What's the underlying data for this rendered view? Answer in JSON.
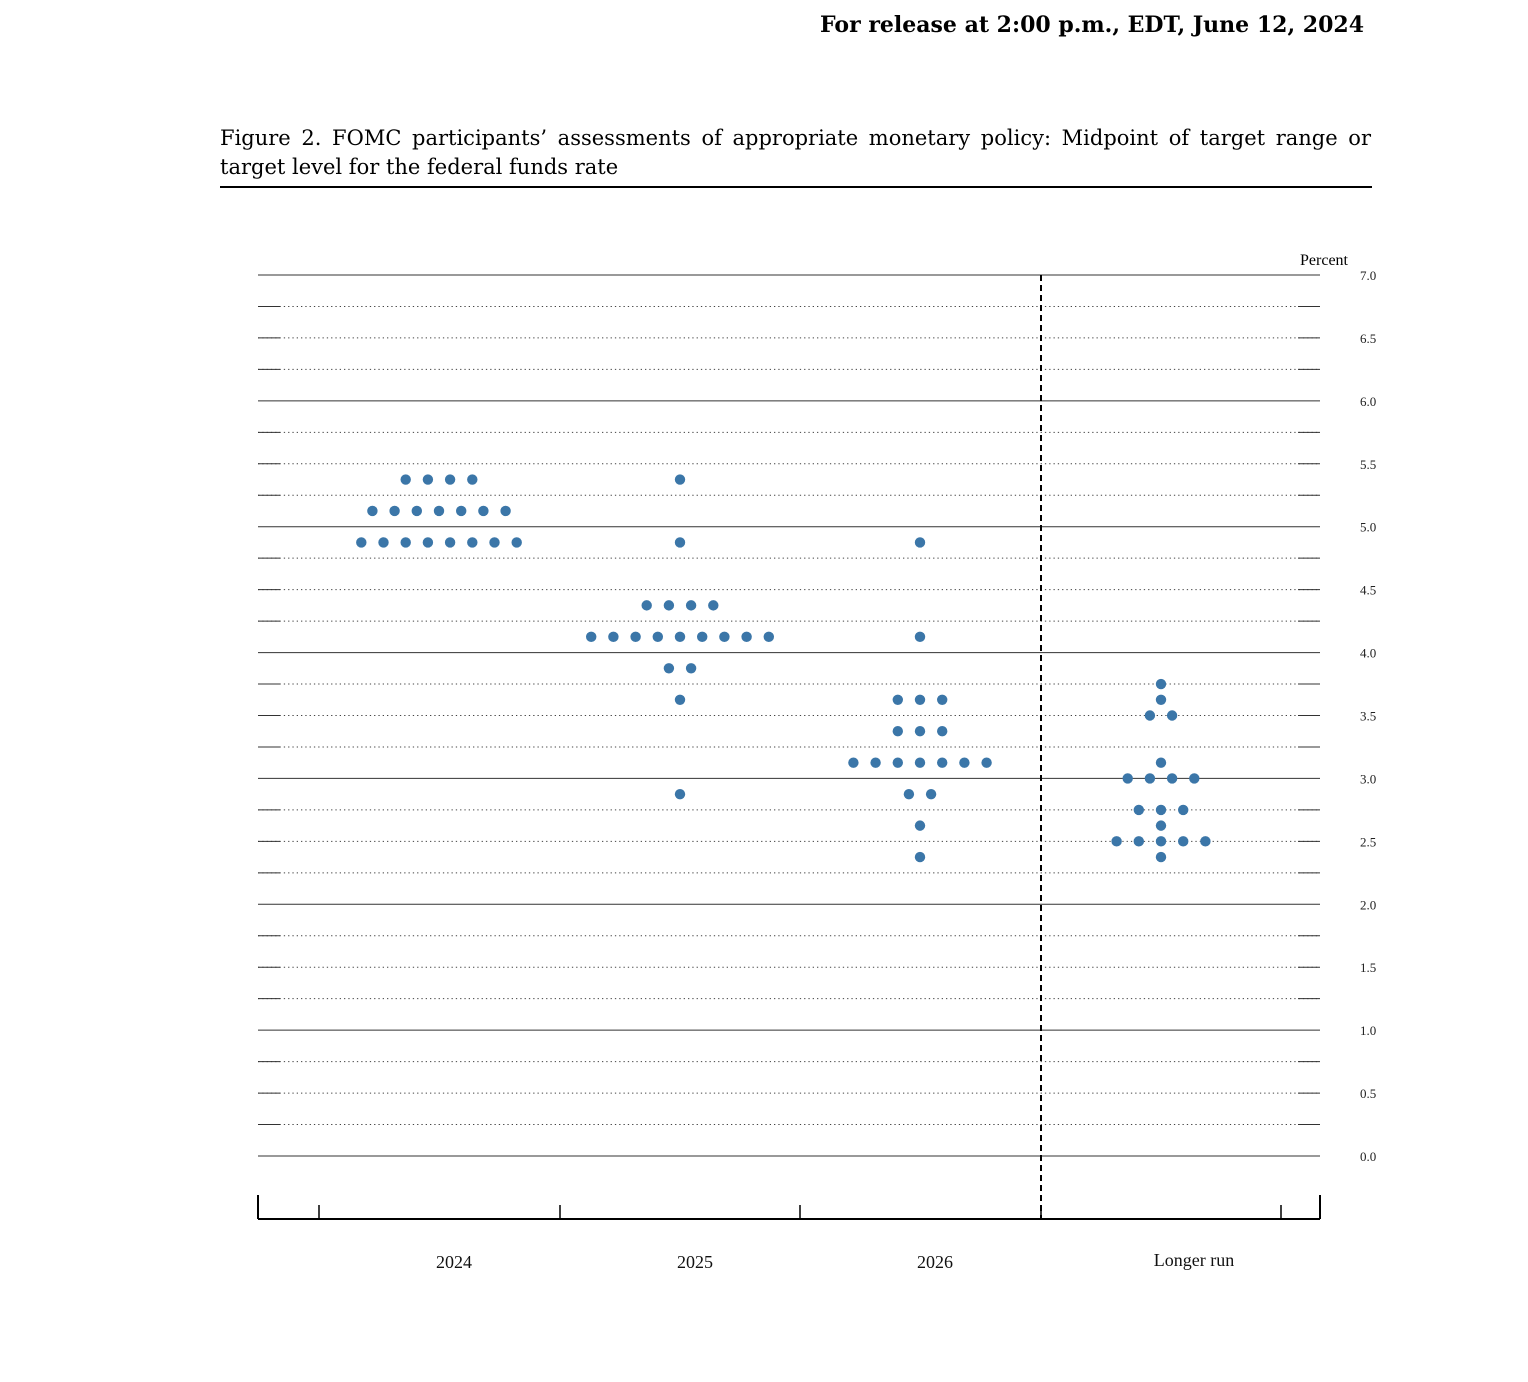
{
  "header": {
    "release": "For release at 2:00 p.m., EDT, June 12, 2024"
  },
  "figure": {
    "title": "Figure 2.  FOMC participants’ assessments of appropriate monetary policy: Midpoint of target range or target level for the federal funds rate"
  },
  "chart_data": {
    "type": "scatter",
    "title": "",
    "ylabel": "Percent",
    "xlabel": "",
    "ylim": [
      0,
      7
    ],
    "yticks": [
      "0.0",
      "0.5",
      "1.0",
      "1.5",
      "2.0",
      "2.5",
      "3.0",
      "3.5",
      "4.0",
      "4.5",
      "5.0",
      "5.5",
      "6.0",
      "6.5",
      "7.0"
    ],
    "categories": [
      "2024",
      "2025",
      "2026",
      "Longer run"
    ],
    "grid": true,
    "separator_before": "Longer run",
    "dot_color": "#3b76a8",
    "series": [
      {
        "category": "2024",
        "points": [
          {
            "y": 5.375,
            "count": 4
          },
          {
            "y": 5.125,
            "count": 7
          },
          {
            "y": 4.875,
            "count": 8
          }
        ]
      },
      {
        "category": "2025",
        "points": [
          {
            "y": 5.375,
            "count": 1
          },
          {
            "y": 4.875,
            "count": 1
          },
          {
            "y": 4.375,
            "count": 4
          },
          {
            "y": 4.125,
            "count": 9
          },
          {
            "y": 3.875,
            "count": 2
          },
          {
            "y": 3.625,
            "count": 1
          },
          {
            "y": 2.875,
            "count": 1
          }
        ]
      },
      {
        "category": "2026",
        "points": [
          {
            "y": 4.875,
            "count": 1
          },
          {
            "y": 4.125,
            "count": 1
          },
          {
            "y": 3.625,
            "count": 3
          },
          {
            "y": 3.375,
            "count": 3
          },
          {
            "y": 3.125,
            "count": 7
          },
          {
            "y": 2.875,
            "count": 2
          },
          {
            "y": 2.625,
            "count": 1
          },
          {
            "y": 2.375,
            "count": 1
          }
        ]
      },
      {
        "category": "Longer run",
        "points": [
          {
            "y": 3.75,
            "count": 1
          },
          {
            "y": 3.625,
            "count": 1
          },
          {
            "y": 3.5,
            "count": 2
          },
          {
            "y": 3.125,
            "count": 1
          },
          {
            "y": 3.0,
            "count": 4
          },
          {
            "y": 2.75,
            "count": 3
          },
          {
            "y": 2.625,
            "count": 1
          },
          {
            "y": 2.5,
            "count": 5
          },
          {
            "y": 2.375,
            "count": 1
          }
        ]
      }
    ]
  }
}
